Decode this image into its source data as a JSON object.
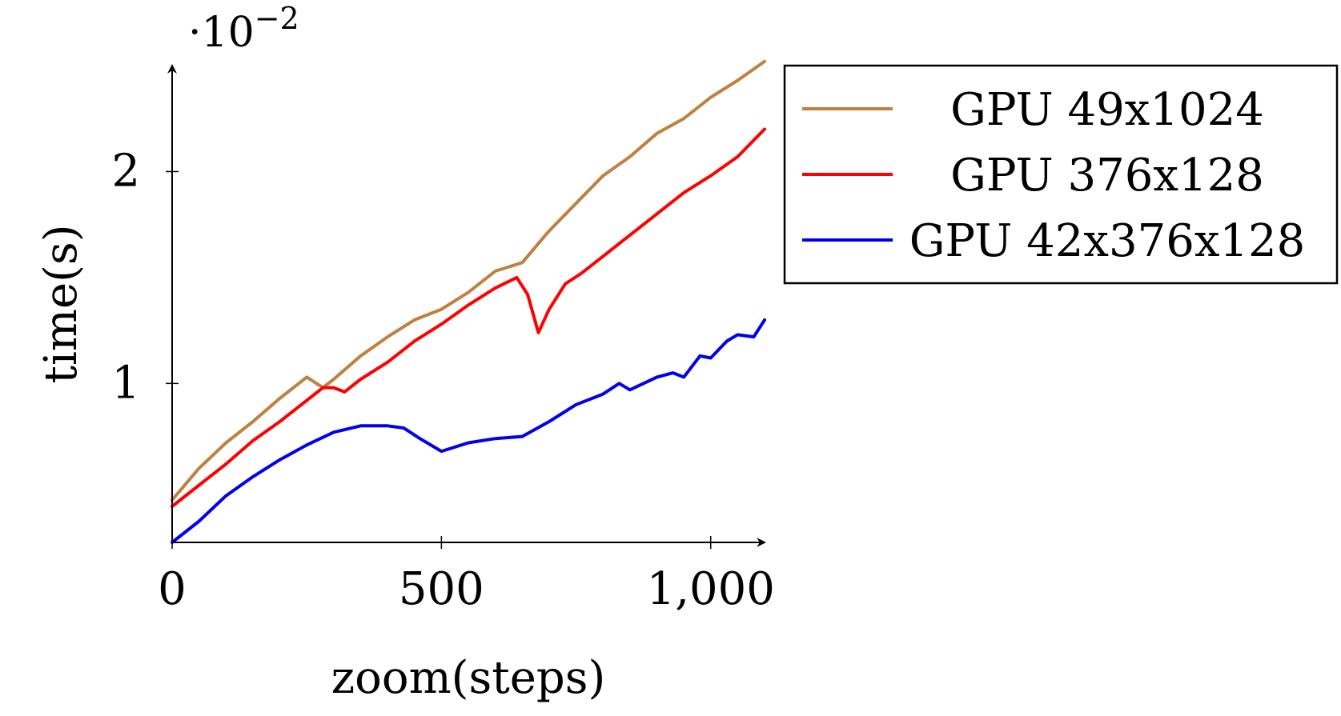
{
  "chart_data": {
    "type": "line",
    "title": "",
    "xlabel": "zoom(steps)",
    "ylabel": "time(s)",
    "y_scale_label": {
      "prefix": "·10",
      "exponent": "−2"
    },
    "xlim": [
      0,
      1100
    ],
    "ylim": [
      0.25,
      2.5
    ],
    "x_ticks": [
      {
        "value": 0,
        "label": "0"
      },
      {
        "value": 500,
        "label": "500"
      },
      {
        "value": 1000,
        "label": "1,000"
      }
    ],
    "y_ticks": [
      {
        "value": 1,
        "label": "1"
      },
      {
        "value": 2,
        "label": "2"
      }
    ],
    "grid": false,
    "legend_position": "outside-right",
    "series": [
      {
        "name": "GPU 49x1024",
        "color": "#bf8040",
        "x": [
          0,
          50,
          100,
          150,
          200,
          250,
          280,
          300,
          350,
          400,
          450,
          500,
          550,
          600,
          650,
          700,
          750,
          800,
          850,
          900,
          950,
          1000,
          1050,
          1100
        ],
        "y": [
          0.45,
          0.6,
          0.72,
          0.82,
          0.93,
          1.03,
          0.98,
          1.02,
          1.13,
          1.22,
          1.3,
          1.35,
          1.43,
          1.53,
          1.57,
          1.72,
          1.85,
          1.98,
          2.07,
          2.18,
          2.25,
          2.35,
          2.43,
          2.52
        ]
      },
      {
        "name": "GPU 376x128",
        "color": "#ff0000",
        "x": [
          0,
          50,
          100,
          150,
          200,
          250,
          280,
          300,
          320,
          350,
          400,
          450,
          500,
          550,
          600,
          640,
          660,
          680,
          700,
          730,
          760,
          800,
          850,
          900,
          950,
          1000,
          1050,
          1100
        ],
        "y": [
          0.42,
          0.52,
          0.62,
          0.73,
          0.82,
          0.92,
          0.98,
          0.98,
          0.96,
          1.02,
          1.1,
          1.2,
          1.28,
          1.37,
          1.45,
          1.5,
          1.42,
          1.24,
          1.35,
          1.47,
          1.52,
          1.6,
          1.7,
          1.8,
          1.9,
          1.98,
          2.07,
          2.2
        ]
      },
      {
        "name": "GPU 42x376x128",
        "color": "#0000ee",
        "x": [
          0,
          50,
          100,
          150,
          200,
          250,
          300,
          350,
          400,
          430,
          460,
          500,
          550,
          600,
          650,
          700,
          750,
          800,
          830,
          850,
          900,
          930,
          950,
          980,
          1000,
          1030,
          1050,
          1080,
          1100
        ],
        "y": [
          0.25,
          0.35,
          0.47,
          0.56,
          0.64,
          0.71,
          0.77,
          0.8,
          0.8,
          0.79,
          0.74,
          0.68,
          0.72,
          0.74,
          0.75,
          0.82,
          0.9,
          0.95,
          1.0,
          0.97,
          1.03,
          1.05,
          1.03,
          1.13,
          1.12,
          1.2,
          1.23,
          1.22,
          1.3
        ]
      }
    ]
  }
}
